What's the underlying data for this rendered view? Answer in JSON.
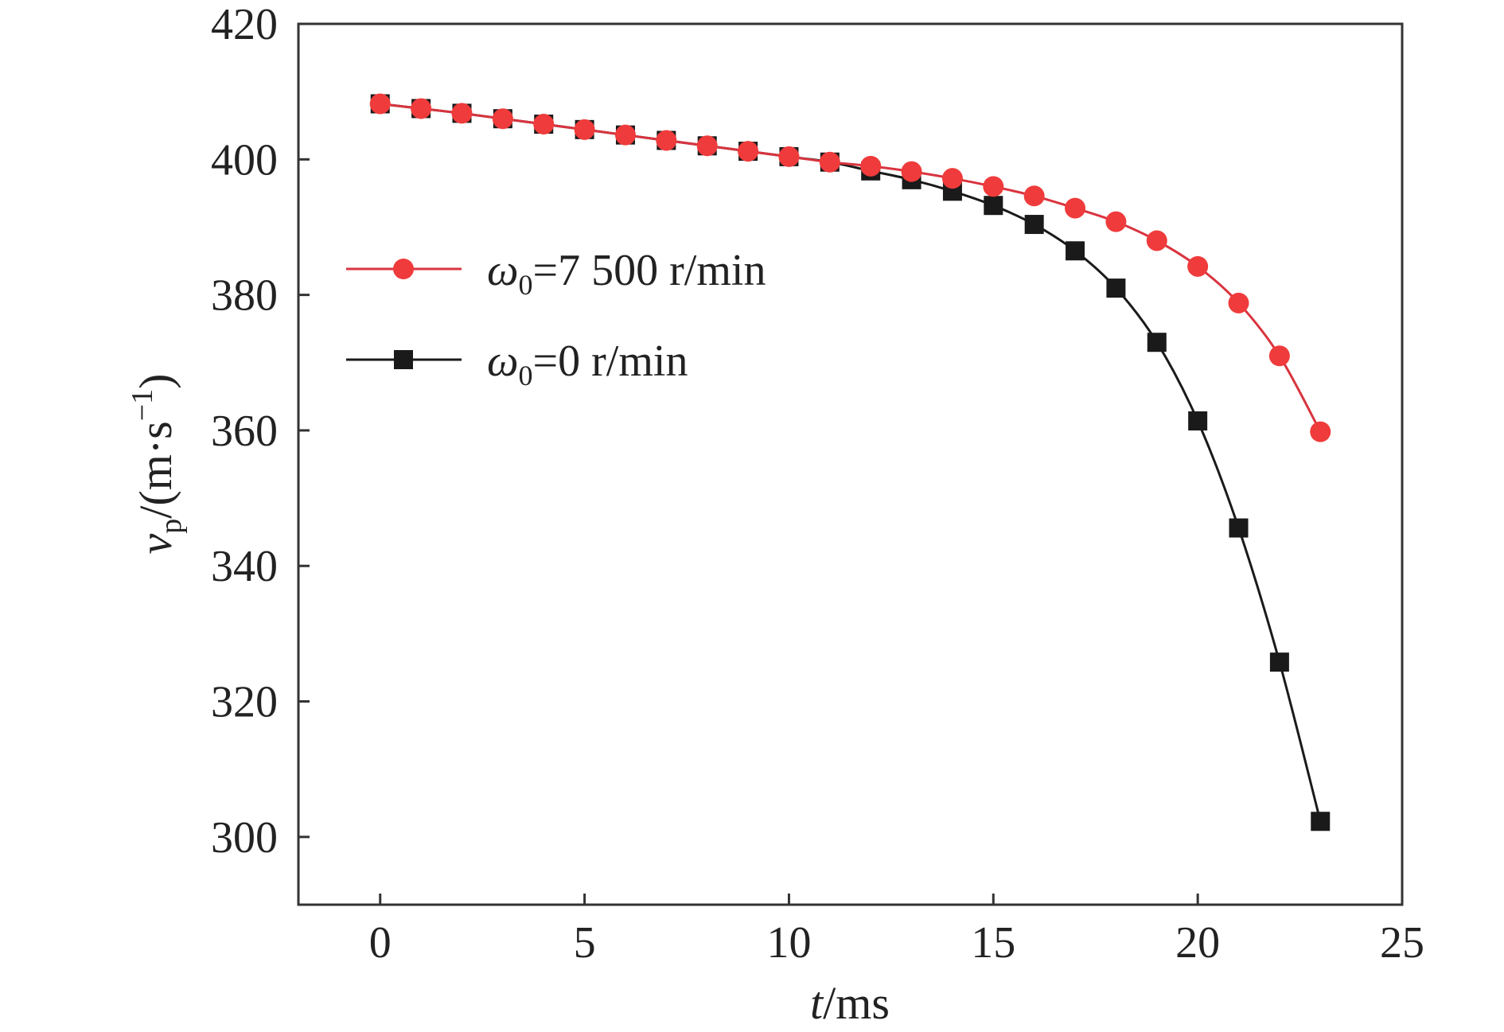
{
  "chart_data": {
    "type": "line",
    "xlabel": {
      "italic": "t",
      "rest": "/ms"
    },
    "ylabel": {
      "italic": "v",
      "sub": "p",
      "rest": "/(m·s",
      "sup": "−1",
      "close": ")"
    },
    "xlim": [
      -2,
      25
    ],
    "ylim": [
      290,
      420
    ],
    "xticks": [
      0,
      5,
      10,
      15,
      20,
      25
    ],
    "yticks": [
      300,
      320,
      340,
      360,
      380,
      400,
      420
    ],
    "grid": false,
    "legend_position": "upper-left",
    "series": [
      {
        "legend": {
          "symbol": "ω",
          "sub": "0",
          "rest": "=7 500 r/min"
        },
        "color": "#d9343f",
        "marker_color": "#ef3b3b",
        "marker": "circle",
        "x": [
          0,
          1,
          2,
          3,
          4,
          5,
          6,
          7,
          8,
          9,
          10,
          11,
          12,
          13,
          14,
          15,
          16,
          17,
          18,
          19,
          20,
          21,
          22,
          23
        ],
        "y": [
          408.2,
          407.5,
          406.8,
          406.0,
          405.2,
          404.4,
          403.6,
          402.8,
          402.0,
          401.2,
          400.4,
          399.6,
          399.0,
          398.2,
          397.2,
          396.0,
          394.6,
          392.8,
          390.8,
          388.0,
          384.2,
          378.8,
          371.0,
          359.8
        ]
      },
      {
        "legend": {
          "symbol": "ω",
          "sub": "0",
          "rest": "=0 r/min"
        },
        "color": "#1a1a1a",
        "marker_color": "#1a1a1a",
        "marker": "square",
        "x": [
          0,
          1,
          2,
          3,
          4,
          5,
          6,
          7,
          8,
          9,
          10,
          11,
          12,
          13,
          14,
          15,
          16,
          17,
          18,
          19,
          20,
          21,
          22,
          23
        ],
        "y": [
          408.2,
          407.5,
          406.8,
          406.0,
          405.2,
          404.4,
          403.6,
          402.8,
          402.0,
          401.2,
          400.4,
          399.6,
          398.3,
          397.0,
          395.3,
          393.2,
          390.4,
          386.5,
          381.0,
          373.0,
          361.4,
          345.6,
          325.8,
          302.3
        ]
      }
    ]
  }
}
